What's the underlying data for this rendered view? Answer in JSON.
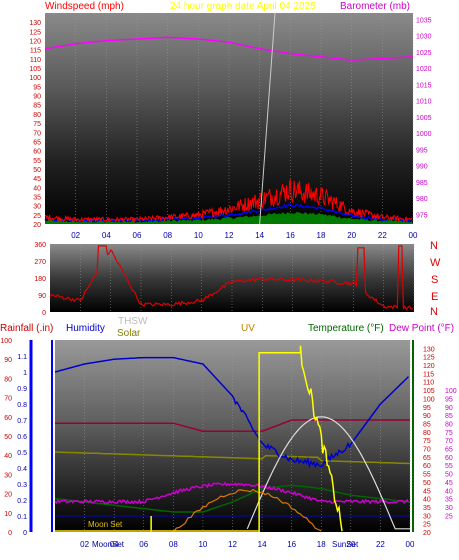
{
  "header": {
    "left_label": "Windspeed (mph)",
    "center_label": "24 hour graph date   April 04 2025",
    "right_label": "Barometer (mb)"
  },
  "colors": {
    "wind": "#ff0000",
    "gust_blue": "#0000ff",
    "green": "#008800",
    "barometer": "#ff00ff",
    "header": "#ffff00",
    "direction": "#dd0000",
    "humidity": "#0000cc",
    "solar": "#808000",
    "uv": "#c08000",
    "temperature": "#006600",
    "dewpoint": "#cc00cc",
    "rain": "#0000aa"
  },
  "x_ticks": [
    "02",
    "04",
    "06",
    "08",
    "10",
    "12",
    "14",
    "16",
    "18",
    "20",
    "22",
    "00"
  ],
  "direction_labels": [
    "N",
    "W",
    "S",
    "E",
    "N"
  ],
  "panel3": {
    "rain_label": "Rainfall (.in)",
    "humidity_label": "Humidity",
    "thsw_label": "THSW",
    "solar_label": "Solar",
    "uv_label": "UV",
    "temp_label": "Temperature (°F)",
    "dew_label": "Dew Point (°F)",
    "moon_set": "Moon Set",
    "moon_rise": "MoonSet",
    "sun_set": "SunSet"
  },
  "chart_data": [
    {
      "type": "line",
      "title": "24 hour graph date   April 04 2025",
      "ylabel": "Windspeed (mph)",
      "ylim": [
        20,
        135
      ],
      "yticks": [
        20,
        25,
        30,
        35,
        40,
        45,
        50,
        55,
        60,
        65,
        70,
        75,
        80,
        85,
        90,
        95,
        100,
        105,
        110,
        115,
        120,
        125,
        130
      ],
      "y2label": "Barometer (mb)",
      "y2lim": [
        972,
        1037
      ],
      "y2ticks": [
        975,
        980,
        985,
        990,
        995,
        1000,
        1005,
        1010,
        1015,
        1020,
        1025,
        1030,
        1035
      ],
      "x": [
        0,
        2,
        4,
        6,
        8,
        10,
        12,
        14,
        16,
        18,
        20,
        22,
        24
      ],
      "series": [
        {
          "name": "Windspeed (mph)",
          "values": [
            23,
            22,
            22,
            22,
            23,
            24,
            27,
            31,
            36,
            33,
            26,
            23,
            22
          ]
        },
        {
          "name": "Barometer (mb)",
          "values": [
            1026,
            1027.5,
            1028.5,
            1029,
            1029.5,
            1029,
            1028,
            1026,
            1024.5,
            1023.5,
            1022.5,
            1023,
            1023.5
          ]
        }
      ]
    },
    {
      "type": "line",
      "ylim": [
        0,
        360
      ],
      "yticks": [
        0,
        90,
        180,
        270,
        360
      ],
      "x": [
        0,
        2,
        4,
        6,
        8,
        10,
        12,
        14,
        16,
        18,
        20,
        22,
        24
      ],
      "series": [
        {
          "name": "Wind direction",
          "values": [
            90,
            60,
            330,
            40,
            40,
            60,
            160,
            175,
            170,
            165,
            150,
            30,
            20
          ]
        }
      ]
    },
    {
      "type": "line",
      "ylabel": "Rainfall (.in)",
      "ylim": [
        0,
        1.2
      ],
      "yticks": [
        0,
        0.1,
        0.2,
        0.3,
        0.4,
        0.5,
        0.6,
        0.7,
        0.8,
        0.9,
        1,
        1.1
      ],
      "y2label": "Temperature (°F)",
      "y2lim": [
        20,
        135
      ],
      "y2ticks": [
        20,
        25,
        30,
        35,
        40,
        45,
        50,
        55,
        60,
        65,
        70,
        75,
        80,
        85,
        90,
        95,
        100,
        105,
        110,
        115,
        120,
        125,
        130
      ],
      "y3ticks": [
        25,
        30,
        35,
        40,
        45,
        50,
        55,
        60,
        65,
        70,
        75,
        80,
        85,
        90,
        95,
        100
      ],
      "x": [
        0,
        2,
        4,
        6,
        8,
        10,
        12,
        14,
        16,
        18,
        20,
        22,
        24
      ],
      "series": [
        {
          "name": "Humidity",
          "values": [
            1.0,
            1.05,
            1.08,
            1.09,
            1.09,
            1.05,
            0.85,
            0.55,
            0.45,
            0.42,
            0.55,
            0.8,
            0.98
          ]
        },
        {
          "name": "Temperature (°F)",
          "values": [
            50,
            48,
            46,
            44,
            42,
            42,
            48,
            56,
            58,
            56,
            52,
            50,
            48
          ]
        },
        {
          "name": "Dew Point (°F)",
          "values": [
            75,
            75,
            74,
            74,
            73,
            74,
            75,
            75,
            76,
            76,
            75,
            74,
            73
          ]
        },
        {
          "name": "Solar",
          "values": [
            0,
            0,
            0,
            0,
            0,
            10,
            30,
            80,
            100,
            60,
            10,
            0,
            0
          ]
        },
        {
          "name": "UV",
          "values": [
            0,
            0,
            0,
            0,
            0,
            0,
            0,
            0.86,
            0.86,
            0.6,
            0,
            0,
            0
          ]
        }
      ]
    }
  ]
}
